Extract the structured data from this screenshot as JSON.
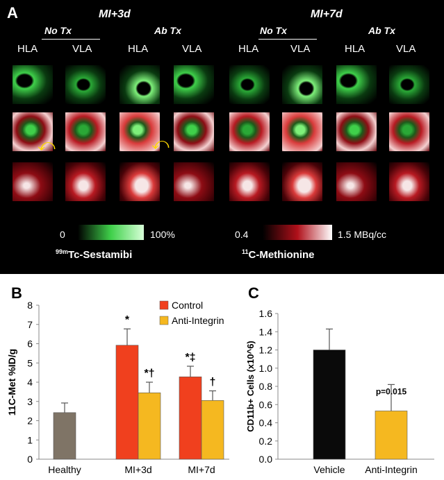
{
  "panelA": {
    "letter": "A",
    "groups": [
      {
        "title": "MI+3d",
        "sub1": "No Tx",
        "sub2": "Ab Tx"
      },
      {
        "title": "MI+7d",
        "sub1": "No Tx",
        "sub2": "Ab Tx"
      }
    ],
    "views": [
      "HLA",
      "VLA",
      "HLA",
      "VLA",
      "HLA",
      "VLA",
      "HLA",
      "VLA"
    ],
    "scale_green": {
      "min": "0",
      "max": "100%",
      "tracer_sup": "99m",
      "tracer": "Tc-Sestamibi",
      "color": "#3fd04a"
    },
    "scale_red": {
      "min": "0.4",
      "max": "1.5 MBq/cc",
      "tracer_sup": "11",
      "tracer": "C-Methionine",
      "color": "#b0101a"
    }
  },
  "chart_data": [
    {
      "panel": "B",
      "type": "bar",
      "ylabel": "11C-Met %ID/g",
      "ylim": [
        0,
        8
      ],
      "yticks": [
        0,
        1,
        2,
        3,
        4,
        5,
        6,
        7,
        8
      ],
      "categories": [
        "Healthy",
        "MI+3d",
        "MI+7d"
      ],
      "legend": [
        "Control",
        "Anti-Integrin"
      ],
      "bars": [
        {
          "category": "Healthy",
          "series": "",
          "value": 2.42,
          "err": 0.5,
          "color": "#7f7466",
          "annot": ""
        },
        {
          "category": "MI+3d",
          "series": "Control",
          "value": 5.92,
          "err": 0.85,
          "color": "#f0401e",
          "annot": "*"
        },
        {
          "category": "MI+3d",
          "series": "Anti-Integrin",
          "value": 3.45,
          "err": 0.55,
          "color": "#f5b820",
          "annot": "*†"
        },
        {
          "category": "MI+7d",
          "series": "Control",
          "value": 4.28,
          "err": 0.55,
          "color": "#f0401e",
          "annot": "*‡"
        },
        {
          "category": "MI+7d",
          "series": "Anti-Integrin",
          "value": 3.05,
          "err": 0.5,
          "color": "#f5b820",
          "annot": "†"
        }
      ]
    },
    {
      "panel": "C",
      "type": "bar",
      "ylabel": "CD11b+ Cells (x10^6)",
      "ylim": [
        0,
        1.6
      ],
      "yticks": [
        "0.0",
        "0.2",
        "0.4",
        "0.6",
        "0.8",
        "1.0",
        "1.2",
        "1.4",
        "1.6"
      ],
      "categories": [
        "Vehicle",
        "Anti-Integrin"
      ],
      "values": [
        1.2,
        0.53
      ],
      "errors": [
        0.23,
        0.29
      ],
      "colors": [
        "#0a0a0a",
        "#f5b820"
      ],
      "annotation": "p=0.015"
    }
  ]
}
